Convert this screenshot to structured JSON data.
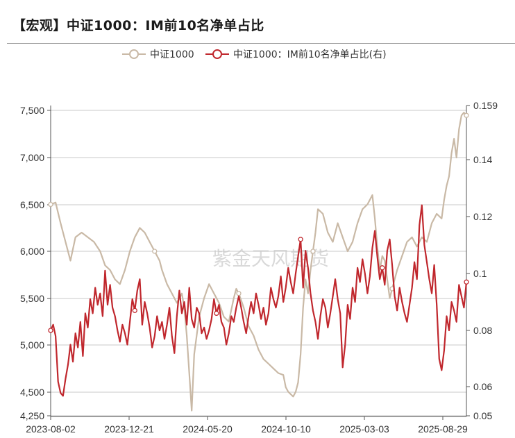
{
  "header": {
    "title": "【宏观】中证1000：IM前10名净单占比"
  },
  "watermark": "紫金天风期货",
  "colors": {
    "index_line": "#c9b9a6",
    "ratio_line": "#c0272d",
    "grid": "#c8c8c8",
    "axis": "#555555"
  },
  "chart_data": {
    "type": "line",
    "title": "【宏观】中证1000：IM前10名净单占比",
    "legend_position": "top",
    "grid": true,
    "x": {
      "tick_labels": [
        "2023-08-02",
        "2023-12-21",
        "2024-05-20",
        "2024-10-10",
        "2025-03-03",
        "2025-08-29"
      ]
    },
    "y_left": {
      "range": [
        4250,
        7600
      ],
      "tick_labels": [
        "4,250",
        "4,500",
        "5,000",
        "5,500",
        "6,000",
        "6,500",
        "7,000",
        "7,500"
      ],
      "tick_values": [
        4250,
        4500,
        5000,
        5500,
        6000,
        6500,
        7000,
        7500
      ]
    },
    "y_right": {
      "range": [
        0.05,
        0.159
      ],
      "tick_labels": [
        "0.05",
        "0.06",
        "0.08",
        "0.1",
        "0.12",
        "0.14",
        "0.159"
      ],
      "tick_values": [
        0.05,
        0.06,
        0.08,
        0.1,
        0.12,
        0.14,
        0.159
      ]
    },
    "series": [
      {
        "name": "中证1000",
        "axis": "left",
        "points": [
          [
            0,
            6500
          ],
          [
            4,
            6520
          ],
          [
            8,
            6300
          ],
          [
            12,
            6100
          ],
          [
            16,
            5900
          ],
          [
            20,
            6150
          ],
          [
            25,
            6200
          ],
          [
            30,
            6150
          ],
          [
            35,
            6100
          ],
          [
            40,
            6000
          ],
          [
            44,
            5850
          ],
          [
            48,
            5800
          ],
          [
            52,
            5700
          ],
          [
            56,
            5650
          ],
          [
            60,
            5800
          ],
          [
            64,
            6000
          ],
          [
            68,
            6150
          ],
          [
            72,
            6250
          ],
          [
            76,
            6200
          ],
          [
            80,
            6100
          ],
          [
            84,
            6000
          ],
          [
            88,
            5900
          ],
          [
            90,
            5800
          ],
          [
            94,
            5650
          ],
          [
            98,
            5550
          ],
          [
            102,
            5450
          ],
          [
            106,
            5550
          ],
          [
            108,
            5400
          ],
          [
            110,
            5100
          ],
          [
            112,
            4700
          ],
          [
            114,
            4300
          ],
          [
            116,
            4900
          ],
          [
            120,
            5300
          ],
          [
            124,
            5500
          ],
          [
            128,
            5650
          ],
          [
            132,
            5550
          ],
          [
            136,
            5450
          ],
          [
            140,
            5300
          ],
          [
            144,
            5250
          ],
          [
            148,
            5500
          ],
          [
            150,
            5600
          ],
          [
            152,
            5550
          ],
          [
            156,
            5400
          ],
          [
            160,
            5200
          ],
          [
            164,
            5100
          ],
          [
            168,
            4950
          ],
          [
            172,
            4850
          ],
          [
            176,
            4800
          ],
          [
            180,
            4750
          ],
          [
            184,
            4700
          ],
          [
            188,
            4680
          ],
          [
            190,
            4550
          ],
          [
            192,
            4500
          ],
          [
            196,
            4450
          ],
          [
            198,
            4500
          ],
          [
            200,
            4600
          ],
          [
            202,
            4900
          ],
          [
            204,
            5400
          ],
          [
            206,
            5700
          ],
          [
            208,
            5550
          ],
          [
            210,
            5800
          ],
          [
            212,
            6000
          ],
          [
            214,
            6200
          ],
          [
            216,
            6450
          ],
          [
            220,
            6400
          ],
          [
            224,
            6200
          ],
          [
            228,
            6100
          ],
          [
            232,
            6300
          ],
          [
            236,
            6150
          ],
          [
            240,
            6000
          ],
          [
            244,
            6100
          ],
          [
            248,
            6300
          ],
          [
            252,
            6450
          ],
          [
            256,
            6500
          ],
          [
            260,
            6600
          ],
          [
            262,
            6350
          ],
          [
            264,
            6050
          ],
          [
            266,
            5800
          ],
          [
            268,
            5950
          ],
          [
            270,
            5900
          ],
          [
            272,
            5700
          ],
          [
            274,
            5500
          ],
          [
            276,
            5600
          ],
          [
            280,
            5800
          ],
          [
            284,
            5950
          ],
          [
            288,
            6100
          ],
          [
            292,
            6150
          ],
          [
            296,
            6050
          ],
          [
            300,
            6150
          ],
          [
            304,
            6100
          ],
          [
            308,
            6300
          ],
          [
            312,
            6400
          ],
          [
            316,
            6350
          ],
          [
            318,
            6550
          ],
          [
            320,
            6700
          ],
          [
            322,
            6800
          ],
          [
            324,
            7050
          ],
          [
            326,
            7200
          ],
          [
            328,
            7000
          ],
          [
            330,
            7300
          ],
          [
            332,
            7450
          ],
          [
            334,
            7480
          ],
          [
            336,
            7450
          ]
        ]
      },
      {
        "name": "中证1000：IM前10名净单占比(右)",
        "axis": "right",
        "points": [
          [
            0,
            0.08
          ],
          [
            2,
            0.082
          ],
          [
            4,
            0.078
          ],
          [
            6,
            0.062
          ],
          [
            8,
            0.058
          ],
          [
            10,
            0.057
          ],
          [
            12,
            0.063
          ],
          [
            14,
            0.068
          ],
          [
            16,
            0.075
          ],
          [
            18,
            0.069
          ],
          [
            20,
            0.079
          ],
          [
            22,
            0.074
          ],
          [
            24,
            0.083
          ],
          [
            26,
            0.071
          ],
          [
            28,
            0.086
          ],
          [
            30,
            0.081
          ],
          [
            32,
            0.091
          ],
          [
            34,
            0.086
          ],
          [
            36,
            0.095
          ],
          [
            38,
            0.089
          ],
          [
            40,
            0.093
          ],
          [
            42,
            0.085
          ],
          [
            44,
            0.101
          ],
          [
            46,
            0.089
          ],
          [
            48,
            0.096
          ],
          [
            50,
            0.088
          ],
          [
            52,
            0.085
          ],
          [
            54,
            0.08
          ],
          [
            56,
            0.076
          ],
          [
            58,
            0.082
          ],
          [
            60,
            0.079
          ],
          [
            62,
            0.075
          ],
          [
            64,
            0.083
          ],
          [
            66,
            0.091
          ],
          [
            68,
            0.087
          ],
          [
            70,
            0.094
          ],
          [
            72,
            0.098
          ],
          [
            74,
            0.082
          ],
          [
            76,
            0.09
          ],
          [
            78,
            0.086
          ],
          [
            80,
            0.081
          ],
          [
            82,
            0.074
          ],
          [
            84,
            0.078
          ],
          [
            86,
            0.085
          ],
          [
            88,
            0.08
          ],
          [
            90,
            0.083
          ],
          [
            92,
            0.077
          ],
          [
            94,
            0.082
          ],
          [
            96,
            0.088
          ],
          [
            98,
            0.078
          ],
          [
            100,
            0.072
          ],
          [
            102,
            0.085
          ],
          [
            104,
            0.094
          ],
          [
            106,
            0.086
          ],
          [
            108,
            0.09
          ],
          [
            110,
            0.082
          ],
          [
            112,
            0.095
          ],
          [
            114,
            0.084
          ],
          [
            116,
            0.081
          ],
          [
            118,
            0.088
          ],
          [
            120,
            0.086
          ],
          [
            122,
            0.079
          ],
          [
            124,
            0.081
          ],
          [
            126,
            0.077
          ],
          [
            128,
            0.08
          ],
          [
            130,
            0.084
          ],
          [
            132,
            0.091
          ],
          [
            134,
            0.086
          ],
          [
            136,
            0.089
          ],
          [
            138,
            0.083
          ],
          [
            140,
            0.081
          ],
          [
            142,
            0.075
          ],
          [
            144,
            0.079
          ],
          [
            146,
            0.085
          ],
          [
            148,
            0.083
          ],
          [
            150,
            0.088
          ],
          [
            152,
            0.092
          ],
          [
            154,
            0.088
          ],
          [
            156,
            0.083
          ],
          [
            158,
            0.079
          ],
          [
            160,
            0.085
          ],
          [
            162,
            0.09
          ],
          [
            164,
            0.086
          ],
          [
            166,
            0.093
          ],
          [
            168,
            0.089
          ],
          [
            170,
            0.084
          ],
          [
            172,
            0.088
          ],
          [
            174,
            0.082
          ],
          [
            176,
            0.086
          ],
          [
            178,
            0.095
          ],
          [
            180,
            0.091
          ],
          [
            182,
            0.088
          ],
          [
            184,
            0.092
          ],
          [
            186,
            0.099
          ],
          [
            188,
            0.09
          ],
          [
            190,
            0.095
          ],
          [
            192,
            0.102
          ],
          [
            194,
            0.097
          ],
          [
            196,
            0.093
          ],
          [
            198,
            0.1
          ],
          [
            200,
            0.106
          ],
          [
            202,
            0.112
          ],
          [
            204,
            0.095
          ],
          [
            206,
            0.108
          ],
          [
            208,
            0.102
          ],
          [
            210,
            0.093
          ],
          [
            212,
            0.087
          ],
          [
            214,
            0.083
          ],
          [
            216,
            0.077
          ],
          [
            218,
            0.085
          ],
          [
            220,
            0.091
          ],
          [
            222,
            0.088
          ],
          [
            224,
            0.081
          ],
          [
            226,
            0.086
          ],
          [
            228,
            0.092
          ],
          [
            230,
            0.098
          ],
          [
            232,
            0.091
          ],
          [
            234,
            0.086
          ],
          [
            236,
            0.067
          ],
          [
            238,
            0.075
          ],
          [
            240,
            0.089
          ],
          [
            242,
            0.084
          ],
          [
            244,
            0.095
          ],
          [
            246,
            0.09
          ],
          [
            248,
            0.102
          ],
          [
            250,
            0.097
          ],
          [
            252,
            0.105
          ],
          [
            254,
            0.1
          ],
          [
            256,
            0.093
          ],
          [
            258,
            0.099
          ],
          [
            260,
            0.109
          ],
          [
            262,
            0.115
          ],
          [
            264,
            0.106
          ],
          [
            266,
            0.098
          ],
          [
            268,
            0.102
          ],
          [
            270,
            0.096
          ],
          [
            272,
            0.108
          ],
          [
            274,
            0.112
          ],
          [
            276,
            0.103
          ],
          [
            278,
            0.092
          ],
          [
            280,
            0.087
          ],
          [
            282,
            0.095
          ],
          [
            284,
            0.09
          ],
          [
            286,
            0.086
          ],
          [
            288,
            0.083
          ],
          [
            290,
            0.089
          ],
          [
            292,
            0.095
          ],
          [
            294,
            0.104
          ],
          [
            296,
            0.098
          ],
          [
            298,
            0.117
          ],
          [
            300,
            0.124
          ],
          [
            302,
            0.11
          ],
          [
            304,
            0.104
          ],
          [
            306,
            0.098
          ],
          [
            308,
            0.093
          ],
          [
            310,
            0.103
          ],
          [
            312,
            0.089
          ],
          [
            314,
            0.07
          ],
          [
            316,
            0.066
          ],
          [
            318,
            0.073
          ],
          [
            320,
            0.085
          ],
          [
            322,
            0.08
          ],
          [
            324,
            0.09
          ],
          [
            326,
            0.087
          ],
          [
            328,
            0.083
          ],
          [
            330,
            0.096
          ],
          [
            332,
            0.092
          ],
          [
            334,
            0.088
          ],
          [
            336,
            0.097
          ]
        ]
      }
    ]
  }
}
